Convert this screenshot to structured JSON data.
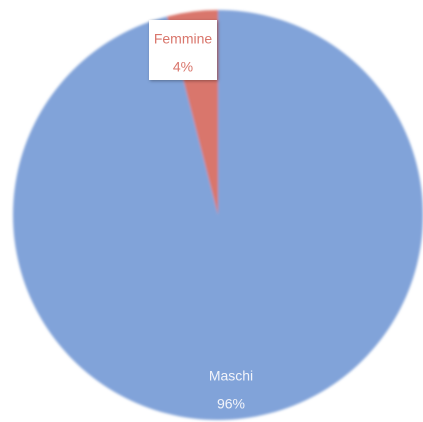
{
  "chart_data": {
    "type": "pie",
    "categories": [
      "Femmine",
      "Maschi"
    ],
    "values": [
      4,
      96
    ],
    "value_labels": [
      "4%",
      "96%"
    ],
    "colors": [
      "#d9766c",
      "#81a3d9"
    ]
  }
}
